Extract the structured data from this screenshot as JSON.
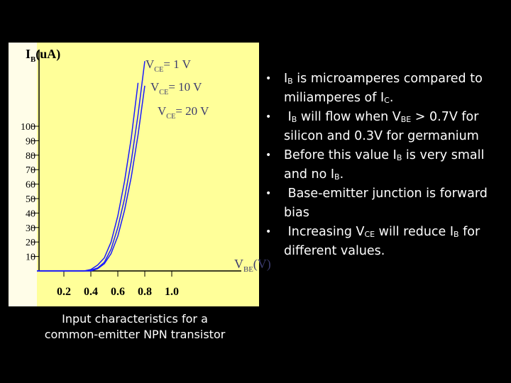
{
  "chart_data": {
    "type": "line",
    "y_label": {
      "text": "I",
      "sub": "B",
      "rest": "(uA)"
    },
    "x_label": {
      "text": "V",
      "sub": "BE",
      "rest": "(V)"
    },
    "x": [
      0,
      0.35,
      0.4,
      0.45,
      0.5,
      0.55,
      0.6,
      0.65,
      0.7,
      0.75,
      0.8
    ],
    "series": [
      {
        "name": {
          "text": "V",
          "sub": "CE",
          "rest": "= 1 V"
        },
        "color": "#1a1aff",
        "values": [
          0,
          0,
          1,
          4,
          9,
          20,
          38,
          62,
          92,
          130,
          null
        ]
      },
      {
        "name": {
          "text": "V",
          "sub": "CE",
          "rest": "= 10 V"
        },
        "color": "#1a1aff",
        "values": [
          0,
          0,
          0.5,
          2,
          6,
          15,
          30,
          50,
          76,
          108,
          145
        ]
      },
      {
        "name": {
          "text": "V",
          "sub": "CE",
          "rest": "= 20 V"
        },
        "color": "#1a1aff",
        "values": [
          0,
          0,
          0,
          1.5,
          5,
          12,
          24,
          42,
          65,
          94,
          128
        ]
      }
    ],
    "xlim": [
      0,
      1.6
    ],
    "ylim": [
      0,
      150
    ],
    "xticks": [
      0.2,
      0.4,
      0.6,
      0.8,
      {
        "value": 1,
        "label": "1.0"
      }
    ],
    "yticks": [
      10,
      20,
      30,
      40,
      50,
      60,
      70,
      80,
      90,
      100
    ],
    "grid": false
  },
  "caption": [
    "Input characteristics for a",
    "common-emitter NPN transistor"
  ],
  "bullets": [
    [
      {
        "text": "I"
      },
      {
        "sub": "B"
      },
      {
        "text": " is microamperes compared to miliamperes of I"
      },
      {
        "sub": "C"
      },
      {
        "text": "."
      }
    ],
    [
      {
        "text": " I"
      },
      {
        "sub": "B"
      },
      {
        "text": " will flow when V"
      },
      {
        "sub": "BE"
      },
      {
        "text": " > 0.7V for silicon and 0.3V for germanium"
      }
    ],
    [
      {
        "text": "Before this value I"
      },
      {
        "sub": "B"
      },
      {
        "text": " is very small and no I"
      },
      {
        "sub": "B"
      },
      {
        "text": "."
      }
    ],
    [
      {
        "text": " Base-emitter junction is forward bias"
      }
    ],
    [
      {
        "text": " Increasing V"
      },
      {
        "sub": "CE"
      },
      {
        "text": " will reduce I"
      },
      {
        "sub": "B"
      },
      {
        "text": " for different values."
      }
    ]
  ]
}
